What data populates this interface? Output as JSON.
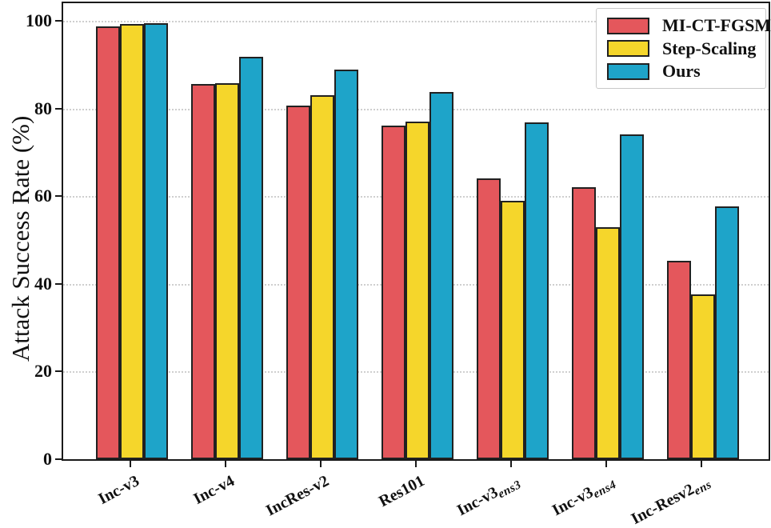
{
  "chart_data": {
    "type": "bar",
    "title": "",
    "xlabel": "",
    "ylabel": "Attack Success Rate (%)",
    "ylim": [
      0,
      104
    ],
    "yticks": [
      0,
      20,
      40,
      60,
      80,
      100
    ],
    "grid": "horizontal dotted at yticks",
    "legend_position": "upper right",
    "categories": [
      {
        "main": "Inc-v3",
        "sub": ""
      },
      {
        "main": "Inc-v4",
        "sub": ""
      },
      {
        "main": "IncRes-v2",
        "sub": ""
      },
      {
        "main": "Res101",
        "sub": ""
      },
      {
        "main": "Inc-v3",
        "sub": "ens3"
      },
      {
        "main": "Inc-v3",
        "sub": "ens4"
      },
      {
        "main": "Inc-Resv2",
        "sub": "ens"
      }
    ],
    "series": [
      {
        "name": "MI-CT-FGSM",
        "color": "#E4575C",
        "values": [
          98.8,
          85.5,
          80.6,
          76.0,
          64.0,
          62.1,
          45.3
        ]
      },
      {
        "name": "Step-Scaling",
        "color": "#F5D62B",
        "values": [
          99.2,
          85.8,
          83.0,
          77.0,
          59.0,
          53.0,
          37.5
        ]
      },
      {
        "name": "Ours",
        "color": "#1EA4C9",
        "values": [
          99.5,
          91.8,
          88.9,
          83.7,
          76.8,
          74.1,
          57.7
        ]
      }
    ],
    "colors": {
      "bar_edge": "#212121",
      "axis": "#1a1a1a",
      "gridline": "#cfcfcf",
      "text": "#111111",
      "background": "#ffffff"
    }
  }
}
